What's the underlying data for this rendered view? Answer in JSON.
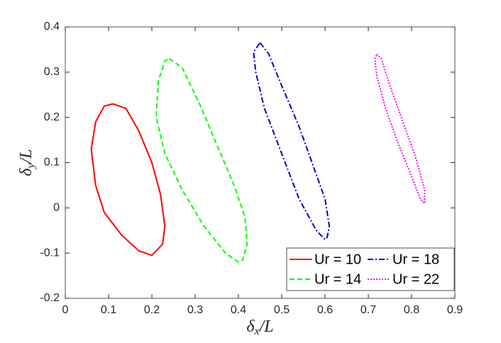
{
  "chart_data": {
    "type": "line",
    "xlabel": "δx/L",
    "ylabel": "δy/L",
    "xlim": [
      0,
      0.9
    ],
    "ylim": [
      -0.2,
      0.4
    ],
    "xticks": [
      0,
      0.1,
      0.2,
      0.3,
      0.4,
      0.5,
      0.6,
      0.7,
      0.8,
      0.9
    ],
    "yticks": [
      -0.2,
      -0.1,
      0,
      0.1,
      0.2,
      0.3,
      0.4
    ],
    "legend": "lower right",
    "series": [
      {
        "name": "Ur = 10",
        "color": "#ff0000",
        "dash": "solid",
        "x": [
          0.11,
          0.14,
          0.17,
          0.2,
          0.22,
          0.23,
          0.225,
          0.2,
          0.17,
          0.13,
          0.09,
          0.07,
          0.06,
          0.07,
          0.09,
          0.11
        ],
        "values": [
          0.23,
          0.22,
          0.17,
          0.1,
          0.03,
          -0.04,
          -0.08,
          -0.105,
          -0.095,
          -0.06,
          -0.01,
          0.05,
          0.13,
          0.19,
          0.225,
          0.23
        ]
      },
      {
        "name": "Ur = 14",
        "color": "#00ff00",
        "dash": "dashed",
        "x": [
          0.24,
          0.27,
          0.31,
          0.35,
          0.39,
          0.415,
          0.42,
          0.41,
          0.4,
          0.37,
          0.32,
          0.27,
          0.23,
          0.21,
          0.215,
          0.23,
          0.24
        ],
        "values": [
          0.33,
          0.31,
          0.23,
          0.14,
          0.05,
          -0.02,
          -0.08,
          -0.115,
          -0.12,
          -0.1,
          -0.04,
          0.04,
          0.12,
          0.2,
          0.28,
          0.325,
          0.33
        ]
      },
      {
        "name": "Ur = 18",
        "color": "#0000cc",
        "dash": "dashdot",
        "x": [
          0.45,
          0.47,
          0.5,
          0.54,
          0.57,
          0.6,
          0.61,
          0.605,
          0.6,
          0.58,
          0.54,
          0.5,
          0.46,
          0.44,
          0.435,
          0.45
        ],
        "values": [
          0.365,
          0.34,
          0.27,
          0.18,
          0.1,
          0.02,
          -0.04,
          -0.065,
          -0.07,
          -0.05,
          0.02,
          0.12,
          0.22,
          0.3,
          0.345,
          0.365
        ]
      },
      {
        "name": "Ur = 22",
        "color": "#ff00ff",
        "dash": "dotted",
        "x": [
          0.72,
          0.73,
          0.75,
          0.78,
          0.81,
          0.83,
          0.83,
          0.82,
          0.8,
          0.77,
          0.74,
          0.72,
          0.715,
          0.72
        ],
        "values": [
          0.34,
          0.33,
          0.27,
          0.19,
          0.11,
          0.04,
          0.01,
          0.02,
          0.07,
          0.14,
          0.22,
          0.29,
          0.33,
          0.34
        ]
      }
    ]
  }
}
